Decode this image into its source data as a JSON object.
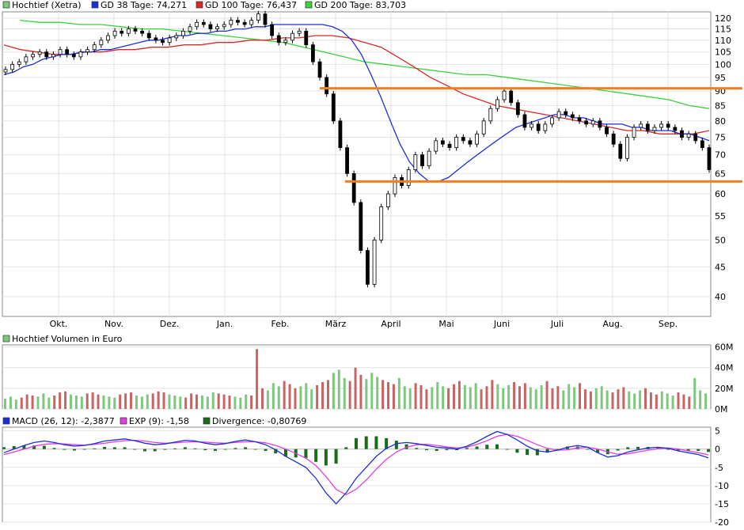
{
  "price_panel": {
    "legend": [
      {
        "label": "Hochtief (Xetra)",
        "color": "#7ec87e"
      },
      {
        "label": "GD 38 Tage: 74,271",
        "color": "#1f2fd6"
      },
      {
        "label": "GD 100 Tage: 76,437",
        "color": "#d92828"
      },
      {
        "label": "GD 200 Tage: 83,703",
        "color": "#3cd23c"
      }
    ]
  },
  "volume_panel": {
    "legend": [
      {
        "label": "Hochtief Volumen in Euro",
        "color": "#7ec87e"
      }
    ]
  },
  "macd_panel": {
    "legend": [
      {
        "label": "MACD (26, 12): -2,3877",
        "color": "#1f2fd6"
      },
      {
        "label": "EXP (9): -1,58",
        "color": "#e040e0"
      },
      {
        "label": "Divergence: -0,80769",
        "color": "#1a6b1a"
      }
    ]
  },
  "chart_data": [
    {
      "type": "candlestick",
      "x_ticks": [
        "Okt.",
        "Nov.",
        "Dez.",
        "Jan.",
        "Feb.",
        "März",
        "April",
        "Mai",
        "Juni",
        "Juli",
        "Aug.",
        "Sep."
      ],
      "y_ticks": [
        40,
        45,
        50,
        55,
        60,
        65,
        70,
        75,
        80,
        85,
        90,
        95,
        100,
        105,
        110,
        115,
        120
      ],
      "ylim": [
        37,
        123
      ],
      "y_scale": "log",
      "grid": true,
      "close": [
        98,
        100,
        101,
        103,
        104,
        105,
        103,
        104,
        106,
        104,
        103,
        105,
        106,
        108,
        110,
        112,
        114,
        113,
        115,
        114,
        113,
        111,
        110,
        109,
        111,
        112,
        114,
        116,
        118,
        117,
        115,
        116,
        117,
        119,
        118,
        117,
        119,
        122,
        117,
        112,
        109,
        110,
        113,
        114,
        108,
        101,
        95,
        89,
        80,
        72,
        65,
        58,
        48,
        42,
        50,
        57,
        60,
        64,
        62,
        66,
        70,
        67,
        71,
        74,
        73,
        72,
        75,
        74,
        73,
        76,
        80,
        84,
        87,
        90,
        86,
        82,
        78,
        79,
        77,
        79,
        81,
        83,
        82,
        81,
        80,
        79,
        80,
        78,
        76,
        73,
        69,
        75,
        78,
        79,
        77,
        78,
        79,
        78,
        77,
        75,
        76,
        74,
        72,
        66
      ],
      "ma38": [
        96,
        97,
        99,
        100,
        102,
        103,
        104,
        104,
        105,
        105,
        106,
        106,
        107,
        108,
        109,
        110,
        110,
        111,
        112,
        112,
        113,
        113,
        114,
        114,
        115,
        115,
        116,
        116,
        117,
        117,
        117,
        117,
        117,
        117,
        116,
        114,
        110,
        104,
        96,
        88,
        80,
        73,
        68,
        65,
        63,
        63,
        64,
        66,
        68,
        70,
        72,
        74,
        76,
        78,
        79,
        80,
        81,
        82,
        82,
        81,
        81,
        80,
        79,
        79,
        79,
        78,
        78,
        77,
        77,
        77,
        76,
        76,
        75,
        74
      ],
      "ma100": [
        108,
        106,
        105,
        104,
        104,
        105,
        105,
        106,
        106,
        107,
        107,
        108,
        108,
        109,
        109,
        110,
        110,
        111,
        111,
        112,
        112,
        111,
        109,
        107,
        103,
        99,
        95,
        92,
        89,
        87,
        85,
        84,
        83,
        82,
        81,
        80,
        79,
        78,
        77,
        77,
        76,
        76,
        76,
        77
      ],
      "ma200": [
        119,
        118,
        118,
        117,
        117,
        116,
        115,
        115,
        114,
        113,
        112,
        111,
        110,
        109,
        107,
        105,
        103,
        101,
        100,
        99,
        98,
        97,
        96,
        96,
        95,
        94,
        93,
        92,
        91,
        90,
        89,
        88,
        87,
        85,
        84
      ],
      "support_lines": [
        91,
        63
      ]
    },
    {
      "type": "bar",
      "y_ticks": [
        "0M",
        "20M",
        "40M",
        "60M"
      ],
      "ylim": [
        0,
        62
      ],
      "grid": true,
      "values": [
        10,
        12,
        9,
        11,
        14,
        13,
        12,
        15,
        11,
        13,
        16,
        17,
        14,
        13,
        12,
        15,
        16,
        14,
        13,
        12,
        11,
        14,
        15,
        16,
        13,
        12,
        14,
        15,
        17,
        16,
        14,
        13,
        12,
        11,
        15,
        14,
        13,
        12,
        16,
        15,
        14,
        13,
        12,
        11,
        14,
        13,
        58,
        20,
        18,
        25,
        22,
        27,
        24,
        20,
        22,
        25,
        19,
        23,
        26,
        28,
        35,
        38,
        30,
        27,
        40,
        33,
        29,
        35,
        31,
        28,
        26,
        24,
        30,
        22,
        20,
        25,
        23,
        19,
        21,
        26,
        22,
        20,
        24,
        27,
        23,
        21,
        25,
        19,
        22,
        28,
        24,
        20,
        23,
        26,
        22,
        25,
        21,
        19,
        23,
        27,
        20,
        22,
        18,
        24,
        21,
        25,
        19,
        17,
        20,
        22,
        18,
        16,
        19,
        21,
        17,
        15,
        18,
        20,
        16,
        14,
        17,
        15,
        13,
        16,
        14,
        12,
        30,
        18,
        15
      ],
      "colors": [
        "#7ec87e",
        "#c86464"
      ]
    },
    {
      "type": "line",
      "y_ticks": [
        5,
        0,
        -5,
        -10,
        -15,
        -20
      ],
      "ylim": [
        -20,
        6
      ],
      "grid": true,
      "macd": [
        -1,
        0,
        1,
        1.8,
        2.2,
        1.8,
        1.2,
        0.8,
        1,
        1.5,
        2.2,
        2.5,
        2.8,
        2.3,
        1.6,
        1.2,
        1.4,
        1.9,
        2.4,
        2.2,
        1.6,
        1.2,
        1.5,
        2.1,
        2.5,
        2.0,
        1.2,
        -0.2,
        -2.0,
        -3.5,
        -5.0,
        -8.0,
        -12.0,
        -15.0,
        -12.0,
        -8.0,
        -5.0,
        -2.0,
        0.2,
        1.5,
        1.8,
        1.5,
        1.0,
        0.5,
        0.3,
        0,
        0.8,
        2.0,
        3.5,
        4.8,
        4.0,
        2.5,
        0.8,
        -0.5,
        -0.8,
        -0.3,
        0.5,
        1.0,
        0.5,
        -1.0,
        -2.2,
        -1.8,
        -0.8,
        -0.2,
        0.3,
        0.5,
        0.2,
        -0.5,
        -1.0,
        -1.5,
        -2.4
      ],
      "exp": [
        -1.5,
        -0.8,
        0,
        0.8,
        1.3,
        1.5,
        1.4,
        1.2,
        1.1,
        1.3,
        1.6,
        2.0,
        2.3,
        2.4,
        2.2,
        1.8,
        1.6,
        1.7,
        1.9,
        2.0,
        1.9,
        1.7,
        1.6,
        1.8,
        2.0,
        2.0,
        1.7,
        1.0,
        0,
        -1.2,
        -2.5,
        -4.5,
        -7.5,
        -11.0,
        -12.5,
        -11.0,
        -8.5,
        -5.5,
        -2.8,
        -0.8,
        0.5,
        1.2,
        1.3,
        1.0,
        0.6,
        0.3,
        0.5,
        1.3,
        2.3,
        3.5,
        4.0,
        3.5,
        2.4,
        1.2,
        0.2,
        -0.3,
        -0.2,
        0.3,
        0.5,
        0,
        -0.8,
        -1.4,
        -1.3,
        -0.8,
        -0.3,
        0.1,
        0.3,
        0,
        -0.5,
        -1.0,
        -1.58
      ],
      "divergence": [
        0.5,
        0.8,
        1.0,
        1.0,
        0.9,
        0.3,
        -0.2,
        -0.4,
        -0.1,
        0.2,
        0.6,
        0.5,
        0.5,
        -0.1,
        -0.6,
        -0.6,
        -0.2,
        0.2,
        0.5,
        0.2,
        -0.3,
        -0.5,
        -0.1,
        0.3,
        0.5,
        0,
        -0.5,
        -1.2,
        -2.0,
        -2.3,
        -2.5,
        -3.5,
        -4.5,
        -4.0,
        0.5,
        3.0,
        3.5,
        3.5,
        3.0,
        2.3,
        1.3,
        0.3,
        -0.3,
        -0.5,
        -0.3,
        -0.3,
        0.3,
        0.7,
        1.2,
        1.3,
        0,
        -1.0,
        -1.6,
        -1.7,
        -1.0,
        0,
        0.7,
        0.7,
        0,
        -1.0,
        -1.4,
        -0.4,
        0.5,
        0.6,
        0.6,
        0.4,
        -0.1,
        -0.5,
        -0.5,
        -0.5,
        -0.8
      ]
    }
  ]
}
